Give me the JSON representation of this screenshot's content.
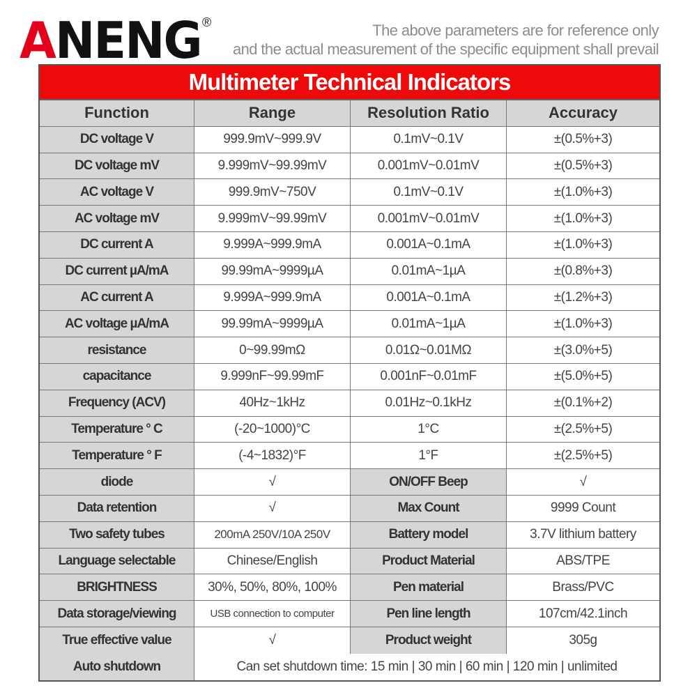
{
  "brand": {
    "logo": "ANENG",
    "registered": "®",
    "colors": {
      "red": "#e4001b",
      "black": "#111111"
    }
  },
  "notice": {
    "line1": "The above parameters are for reference only",
    "line2": "and the actual measurement of the specific equipment shall prevail"
  },
  "table": {
    "title": "Multimeter Technical Indicators",
    "title_color": "#ee0a0a",
    "headers": [
      "Function",
      "Range",
      "Resolution Ratio",
      "Accuracy"
    ],
    "specs": [
      [
        "DC voltage V",
        "999.9mV~999.9V",
        "0.1mV~0.1V",
        "±(0.5%+3)"
      ],
      [
        "DC voltage mV",
        "9.999mV~99.99mV",
        "0.001mV~0.01mV",
        "±(0.5%+3)"
      ],
      [
        "AC voltage V",
        "999.9mV~750V",
        "0.1mV~0.1V",
        "±(1.0%+3)"
      ],
      [
        "AC voltage mV",
        "9.999mV~99.99mV",
        "0.001mV~0.01mV",
        "±(1.0%+3)"
      ],
      [
        "DC current A",
        "9.999A~999.9mA",
        "0.001A~0.1mA",
        "±(1.0%+3)"
      ],
      [
        "DC current µA/mA",
        "99.99mA~9999µA",
        "0.01mA~1µA",
        "±(0.8%+3)"
      ],
      [
        "AC current A",
        "9.999A~999.9mA",
        "0.001A~0.1mA",
        "±(1.2%+3)"
      ],
      [
        "AC voltage µA/mA",
        "99.99mA~9999µA",
        "0.01mA~1µA",
        "±(1.0%+3)"
      ],
      [
        "resistance",
        "0~99.99mΩ",
        "0.01Ω~0.01MΩ",
        "±(3.0%+5)"
      ],
      [
        "capacitance",
        "9.999nF~99.99mF",
        "0.001nF~0.01mF",
        "±(5.0%+5)"
      ],
      [
        "Frequency (ACV)",
        "40Hz~1kHz",
        "0.01Hz~0.1kHz",
        "±(0.1%+2)"
      ],
      [
        "Temperature ° C",
        "(-20~1000)°C",
        "1°C",
        "±(2.5%+5)"
      ],
      [
        "Temperature ° F",
        "(-4~1832)°F",
        "1°F",
        "±(2.5%+5)"
      ]
    ],
    "features": [
      [
        "diode",
        "√",
        "ON/OFF Beep",
        "√"
      ],
      [
        "Data retention",
        "√",
        "Max Count",
        "9999 Count"
      ],
      [
        "Two safety tubes",
        "200mA 250V/10A 250V",
        "Battery model",
        "3.7V lithium battery"
      ],
      [
        "Language selectable",
        "Chinese/English",
        "Product Material",
        "ABS/TPE"
      ],
      [
        "BRIGHTNESS",
        "30%, 50%, 80%, 100%",
        "Pen material",
        "Brass/PVC"
      ],
      [
        "Data storage/viewing",
        "USB connection to computer",
        "Pen line length",
        "107cm/42.1inch"
      ],
      [
        "True effective value",
        "√",
        "Product weight",
        "305g"
      ]
    ],
    "auto_shutdown": {
      "label": "Auto shutdown",
      "value": "Can set shutdown time: 15 min | 30 min | 60 min | 120 min | unlimited"
    }
  }
}
